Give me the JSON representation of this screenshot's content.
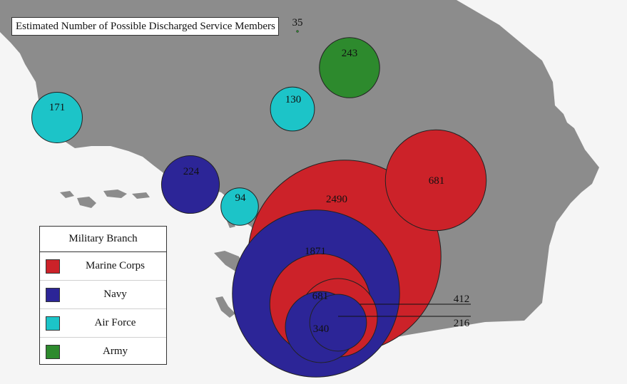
{
  "title": "Estimated Number of Possible Discharged Service Members",
  "colors": {
    "land": "#8c8c8c",
    "water": "#f5f5f5",
    "Marine Corps": "#cc2229",
    "Navy": "#2c2597",
    "Air Force": "#1cc4c8",
    "Army": "#2d8a2d"
  },
  "legend": {
    "title": "Military Branch",
    "items": [
      {
        "label": "Marine Corps",
        "color": "#cc2229"
      },
      {
        "label": "Navy",
        "color": "#2c2597"
      },
      {
        "label": "Air Force",
        "color": "#1cc4c8"
      },
      {
        "label": "Army",
        "color": "#2d8a2d"
      }
    ]
  },
  "locations": [
    {
      "branch": "Marine Corps",
      "value": 2490
    },
    {
      "branch": "Navy",
      "value": 1871
    },
    {
      "branch": "Marine Corps",
      "value": 681
    },
    {
      "branch": "Marine Corps",
      "value": 681
    },
    {
      "branch": "Marine Corps",
      "value": 412
    },
    {
      "branch": "Navy",
      "value": 340
    },
    {
      "branch": "Army",
      "value": 243
    },
    {
      "branch": "Navy",
      "value": 224
    },
    {
      "branch": "Navy",
      "value": 216
    },
    {
      "branch": "Air Force",
      "value": 171
    },
    {
      "branch": "Air Force",
      "value": 130
    },
    {
      "branch": "Air Force",
      "value": 94
    },
    {
      "branch": "Army",
      "value": 35
    }
  ]
}
